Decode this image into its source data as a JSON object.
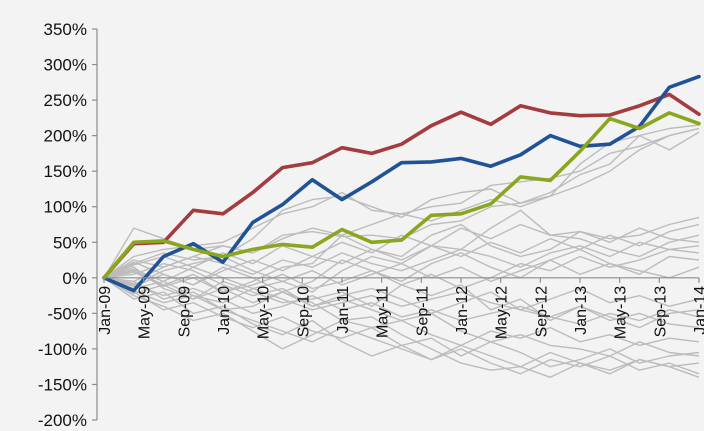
{
  "chart_data": {
    "type": "line",
    "title": "",
    "xlabel": "",
    "ylabel": "",
    "x_categories": [
      "Jan-09",
      "May-09",
      "Sep-09",
      "Jan-10",
      "May-10",
      "Sep-10",
      "Jan-11",
      "May-11",
      "Sep-11",
      "Jan-12",
      "May-12",
      "Sep-12",
      "Jan-13",
      "May-13",
      "Sep-13",
      "Jan-14"
    ],
    "x_tick_labels": [
      "Jan-09",
      "May-09",
      "Sep-09",
      "Jan-10",
      "May-10",
      "Sep-10",
      "Jan-11",
      "May-11",
      "Sep-11",
      "Jan-12",
      "May-12",
      "Sep-12",
      "Jan-13",
      "May-13",
      "Sep-13",
      "Jan-14"
    ],
    "y_ticks": [
      -200,
      -150,
      -100,
      -50,
      0,
      50,
      100,
      150,
      200,
      250,
      300,
      350
    ],
    "y_tick_labels": [
      "-200%",
      "-150%",
      "-100%",
      "-50%",
      "0%",
      "50%",
      "100%",
      "150%",
      "200%",
      "250%",
      "300%",
      "350%"
    ],
    "ylim": [
      -200,
      350
    ],
    "grid": false,
    "legend": "none",
    "colors": {
      "red": "#a33b3f",
      "blue": "#1f5396",
      "green": "#8aa61f",
      "gray": "#bcbcbc",
      "axis": "#8c8c8c"
    },
    "highlight_series": [
      {
        "color": "red",
        "x": [
          0,
          0.25,
          0.5,
          0.75,
          1,
          1.25,
          1.5,
          1.75,
          2,
          2.25,
          2.5,
          2.75,
          3,
          3.25,
          3.5,
          3.75,
          4,
          4.25,
          4.5,
          4.75,
          5
        ],
        "values": [
          0,
          48,
          50,
          95,
          90,
          120,
          155,
          162,
          183,
          175,
          188,
          214,
          233,
          216,
          242,
          232,
          228,
          229,
          242,
          258,
          230
        ]
      },
      {
        "color": "blue",
        "x": [
          0,
          0.25,
          0.5,
          0.75,
          1,
          1.25,
          1.5,
          1.75,
          2,
          2.25,
          2.5,
          2.75,
          3,
          3.25,
          3.5,
          3.75,
          4,
          4.25,
          4.5,
          4.75,
          5
        ],
        "values": [
          0,
          -18,
          30,
          48,
          22,
          78,
          103,
          138,
          110,
          135,
          162,
          163,
          168,
          157,
          173,
          200,
          185,
          188,
          213,
          268,
          283
        ]
      },
      {
        "color": "green",
        "x": [
          0,
          0.25,
          0.5,
          0.75,
          1,
          1.25,
          1.5,
          1.75,
          2,
          2.25,
          2.5,
          2.75,
          3,
          3.25,
          3.5,
          3.75,
          4,
          4.25,
          4.5,
          4.75,
          5
        ],
        "values": [
          0,
          50,
          52,
          40,
          30,
          40,
          47,
          43,
          68,
          50,
          53,
          88,
          90,
          104,
          142,
          137,
          178,
          224,
          210,
          232,
          217
        ]
      }
    ],
    "gray_series": [
      {
        "x": [
          0,
          0.25,
          0.5,
          0.75,
          1,
          1.25,
          1.5,
          1.75,
          2,
          2.25,
          2.5,
          2.75,
          3,
          3.25,
          3.5,
          3.75,
          4,
          4.25,
          4.5,
          4.75,
          5
        ],
        "values": [
          0,
          70,
          55,
          40,
          45,
          35,
          60,
          65,
          58,
          60,
          55,
          75,
          80,
          100,
          105,
          115,
          160,
          190,
          200,
          210,
          215
        ]
      },
      {
        "x": [
          0,
          0.25,
          0.5,
          0.75,
          1,
          1.25,
          1.5,
          1.75,
          2,
          2.25,
          2.5,
          2.75,
          3,
          3.25,
          3.5,
          3.75,
          4,
          4.25,
          4.5,
          4.75,
          5
        ],
        "values": [
          0,
          30,
          40,
          45,
          50,
          70,
          90,
          100,
          120,
          95,
          90,
          100,
          105,
          130,
          135,
          140,
          150,
          175,
          185,
          200,
          210
        ]
      },
      {
        "x": [
          0,
          0.25,
          0.5,
          0.75,
          1,
          1.25,
          1.5,
          1.75,
          2,
          2.25,
          2.5,
          2.75,
          3,
          3.25,
          3.5,
          3.75,
          4,
          4.25,
          4.5,
          4.75,
          5
        ],
        "values": [
          0,
          20,
          35,
          25,
          30,
          55,
          95,
          110,
          115,
          100,
          85,
          110,
          120,
          125,
          105,
          120,
          145,
          160,
          200,
          180,
          205
        ]
      },
      {
        "x": [
          0,
          0.25,
          0.5,
          0.75,
          1,
          1.25,
          1.5,
          1.75,
          2,
          2.25,
          2.5,
          2.75,
          3,
          3.25,
          3.5,
          3.75,
          4,
          4.25,
          4.5,
          4.75,
          5
        ],
        "values": [
          0,
          10,
          -10,
          5,
          -20,
          -5,
          15,
          20,
          60,
          40,
          30,
          60,
          75,
          45,
          30,
          40,
          65,
          55,
          60,
          75,
          85
        ]
      },
      {
        "x": [
          0,
          0.25,
          0.5,
          0.75,
          1,
          1.25,
          1.5,
          1.75,
          2,
          2.25,
          2.5,
          2.75,
          3,
          3.25,
          3.5,
          3.75,
          4,
          4.25,
          4.5,
          4.75,
          5
        ],
        "values": [
          0,
          -10,
          10,
          20,
          30,
          10,
          -5,
          -20,
          10,
          30,
          20,
          45,
          40,
          70,
          95,
          60,
          55,
          40,
          30,
          50,
          60
        ]
      },
      {
        "x": [
          0,
          0.25,
          0.5,
          0.75,
          1,
          1.25,
          1.5,
          1.75,
          2,
          2.25,
          2.5,
          2.75,
          3,
          3.25,
          3.5,
          3.75,
          4,
          4.25,
          4.5,
          4.75,
          5
        ],
        "values": [
          0,
          15,
          -15,
          -30,
          -5,
          -20,
          -35,
          -30,
          -20,
          -40,
          -10,
          -25,
          -10,
          -45,
          -30,
          -60,
          -40,
          -55,
          -70,
          -50,
          -45
        ]
      },
      {
        "x": [
          0,
          0.25,
          0.5,
          0.75,
          1,
          1.25,
          1.5,
          1.75,
          2,
          2.25,
          2.5,
          2.75,
          3,
          3.25,
          3.5,
          3.75,
          4,
          4.25,
          4.5,
          4.75,
          5
        ],
        "values": [
          0,
          -25,
          -40,
          -60,
          -50,
          -75,
          -100,
          -80,
          -60,
          -70,
          -95,
          -85,
          -110,
          -90,
          -105,
          -125,
          -115,
          -100,
          -120,
          -110,
          -105
        ]
      },
      {
        "x": [
          0,
          0.25,
          0.5,
          0.75,
          1,
          1.25,
          1.5,
          1.75,
          2,
          2.25,
          2.5,
          2.75,
          3,
          3.25,
          3.5,
          3.75,
          4,
          4.25,
          4.5,
          4.75,
          5
        ],
        "values": [
          0,
          -5,
          -30,
          -20,
          -45,
          -40,
          -20,
          -35,
          -60,
          -55,
          -80,
          -100,
          -120,
          -130,
          -125,
          -140,
          -120,
          -130,
          -115,
          -125,
          -140
        ]
      },
      {
        "x": [
          0,
          0.25,
          0.5,
          0.75,
          1,
          1.25,
          1.5,
          1.75,
          2,
          2.25,
          2.5,
          2.75,
          3,
          3.25,
          3.5,
          3.75,
          4,
          4.25,
          4.5,
          4.75,
          5
        ],
        "values": [
          0,
          5,
          20,
          10,
          -10,
          -25,
          -15,
          -40,
          -30,
          -45,
          -60,
          -50,
          -75,
          -90,
          -80,
          -95,
          -100,
          -110,
          -90,
          -105,
          -110
        ]
      },
      {
        "x": [
          0,
          0.25,
          0.5,
          0.75,
          1,
          1.25,
          1.5,
          1.75,
          2,
          2.25,
          2.5,
          2.75,
          3,
          3.25,
          3.5,
          3.75,
          4,
          4.25,
          4.5,
          4.75,
          5
        ],
        "values": [
          0,
          -15,
          -5,
          -25,
          -35,
          -15,
          -30,
          -45,
          -35,
          -25,
          -40,
          -30,
          -20,
          -35,
          -45,
          -55,
          -40,
          -60,
          -50,
          -65,
          -70
        ]
      },
      {
        "x": [
          0,
          0.25,
          0.5,
          0.75,
          1,
          1.25,
          1.5,
          1.75,
          2,
          2.25,
          2.5,
          2.75,
          3,
          3.25,
          3.5,
          3.75,
          4,
          4.25,
          4.5,
          4.75,
          5
        ],
        "values": [
          0,
          25,
          15,
          30,
          20,
          5,
          25,
          15,
          35,
          20,
          10,
          25,
          40,
          30,
          15,
          35,
          45,
          30,
          50,
          40,
          45
        ]
      },
      {
        "x": [
          0,
          0.25,
          0.5,
          0.75,
          1,
          1.25,
          1.5,
          1.75,
          2,
          2.25,
          2.5,
          2.75,
          3,
          3.25,
          3.5,
          3.75,
          4,
          4.25,
          4.5,
          4.75,
          5
        ],
        "values": [
          0,
          -20,
          -45,
          -35,
          -55,
          -70,
          -55,
          -75,
          -85,
          -70,
          -60,
          -80,
          -95,
          -75,
          -85,
          -70,
          -90,
          -80,
          -95,
          -85,
          -90
        ]
      },
      {
        "x": [
          0,
          0.25,
          0.5,
          0.75,
          1,
          1.25,
          1.5,
          1.75,
          2,
          2.25,
          2.5,
          2.75,
          3,
          3.25,
          3.5,
          3.75,
          4,
          4.25,
          4.5,
          4.75,
          5
        ],
        "values": [
          0,
          8,
          -12,
          0,
          -20,
          -10,
          5,
          -15,
          -5,
          10,
          -10,
          5,
          -15,
          0,
          20,
          10,
          30,
          15,
          25,
          40,
          35
        ]
      },
      {
        "x": [
          0,
          0.25,
          0.5,
          0.75,
          1,
          1.25,
          1.5,
          1.75,
          2,
          2.25,
          2.5,
          2.75,
          3,
          3.25,
          3.5,
          3.75,
          4,
          4.25,
          4.5,
          4.75,
          5
        ],
        "values": [
          0,
          -12,
          5,
          -10,
          10,
          25,
          10,
          30,
          20,
          40,
          25,
          45,
          30,
          50,
          35,
          55,
          40,
          60,
          45,
          65,
          75
        ]
      },
      {
        "x": [
          0,
          0.25,
          0.5,
          0.75,
          1,
          1.25,
          1.5,
          1.75,
          2,
          2.25,
          2.5,
          2.75,
          3,
          3.25,
          3.5,
          3.75,
          4,
          4.25,
          4.5,
          4.75,
          5
        ],
        "values": [
          0,
          -30,
          -20,
          -50,
          -40,
          -65,
          -80,
          -60,
          -90,
          -110,
          -95,
          -115,
          -100,
          -120,
          -135,
          -115,
          -125,
          -110,
          -130,
          -120,
          -135
        ]
      },
      {
        "x": [
          0,
          0.25,
          0.5,
          0.75,
          1,
          1.25,
          1.5,
          1.75,
          2,
          2.25,
          2.5,
          2.75,
          3,
          3.25,
          3.5,
          3.75,
          4,
          4.25,
          4.5,
          4.75,
          5
        ],
        "values": [
          0,
          18,
          30,
          15,
          35,
          20,
          45,
          30,
          50,
          35,
          60,
          45,
          70,
          55,
          75,
          60,
          65,
          50,
          70,
          55,
          50
        ]
      },
      {
        "x": [
          0,
          0.25,
          0.5,
          0.75,
          1,
          1.25,
          1.5,
          1.75,
          2,
          2.25,
          2.5,
          2.75,
          3,
          3.25,
          3.5,
          3.75,
          4,
          4.25,
          4.5,
          4.75,
          5
        ],
        "values": [
          0,
          -8,
          -25,
          -15,
          -30,
          -50,
          -40,
          -25,
          -45,
          -35,
          -55,
          -45,
          -60,
          -50,
          -40,
          -55,
          -65,
          -50,
          -60,
          -45,
          -55
        ]
      },
      {
        "x": [
          0,
          0.25,
          0.5,
          0.75,
          1,
          1.25,
          1.5,
          1.75,
          2,
          2.25,
          2.5,
          2.75,
          3,
          3.25,
          3.5,
          3.75,
          4,
          4.25,
          4.5,
          4.75,
          5
        ],
        "values": [
          0,
          12,
          -5,
          15,
          0,
          -15,
          -5,
          10,
          -10,
          5,
          20,
          0,
          15,
          -5,
          10,
          25,
          5,
          20,
          10,
          0,
          15
        ]
      },
      {
        "x": [
          0,
          0.25,
          0.5,
          0.75,
          1,
          1.25,
          1.5,
          1.75,
          2,
          2.25,
          2.5,
          2.75,
          3,
          3.25,
          3.5,
          3.75,
          4,
          4.25,
          4.5,
          4.75,
          5
        ],
        "values": [
          0,
          -18,
          -35,
          -25,
          -45,
          -60,
          -75,
          -90,
          -70,
          -85,
          -100,
          -115,
          -95,
          -110,
          -125,
          -105,
          -120,
          -135,
          -115,
          -125,
          -120
        ]
      },
      {
        "x": [
          0,
          0.25,
          0.5,
          0.75,
          1,
          1.25,
          1.5,
          1.75,
          2,
          2.25,
          2.5,
          2.75,
          3,
          3.25,
          3.5,
          3.75,
          4,
          4.25,
          4.5,
          4.75,
          5
        ],
        "values": [
          0,
          22,
          5,
          -10,
          15,
          0,
          -20,
          -5,
          25,
          10,
          -5,
          20,
          35,
          15,
          0,
          25,
          40,
          20,
          5,
          30,
          25
        ]
      },
      {
        "x": [
          0,
          0.25,
          0.5,
          0.75,
          1,
          1.25,
          1.5,
          1.75,
          2,
          2.25,
          2.5,
          2.75,
          3,
          3.25,
          3.5,
          3.75,
          4,
          4.25,
          4.5,
          4.75,
          5
        ],
        "values": [
          0,
          -5,
          15,
          30,
          45,
          35,
          55,
          70,
          60,
          75,
          90,
          80,
          95,
          110,
          100,
          115,
          130,
          150,
          180,
          200,
          210
        ]
      },
      {
        "x": [
          0,
          0.25,
          0.5,
          0.75,
          1,
          1.25,
          1.5,
          1.75,
          2,
          2.25,
          2.5,
          2.75,
          3,
          3.25,
          3.5,
          3.75,
          4,
          4.25,
          4.5,
          4.75,
          5
        ],
        "values": [
          0,
          -22,
          -10,
          -30,
          -15,
          -35,
          -20,
          -40,
          -25,
          -15,
          -30,
          -50,
          -35,
          -20,
          -45,
          -30,
          -15,
          -35,
          -25,
          -40,
          -30
        ]
      }
    ]
  }
}
